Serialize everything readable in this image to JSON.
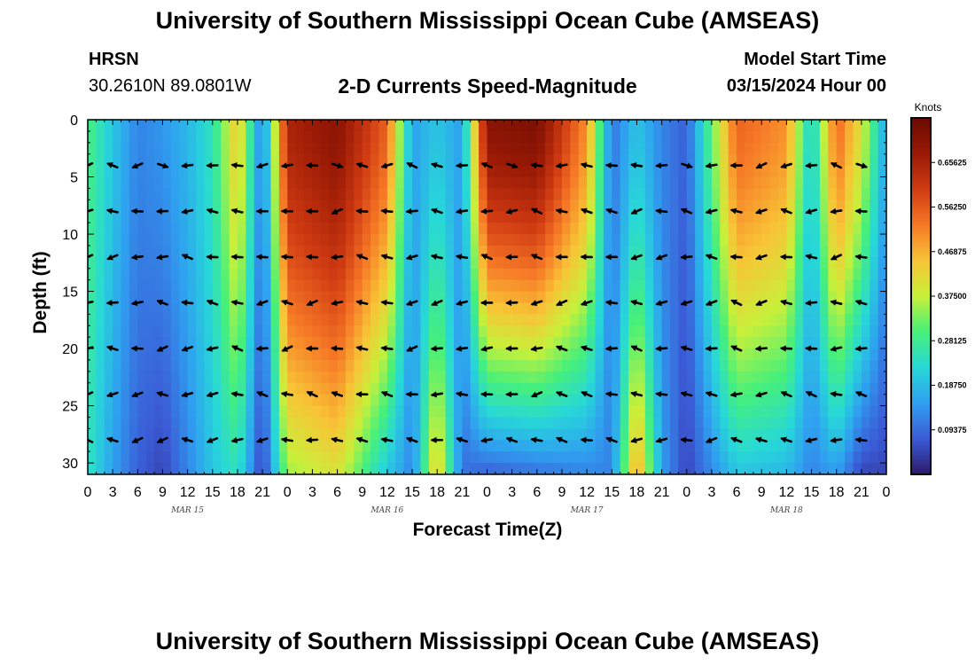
{
  "header": {
    "title": "University of Southern Mississippi Ocean Cube (AMSEAS)",
    "station": "HRSN",
    "coords": "30.2610N  89.0801W",
    "subtitle": "2-D Currents Speed-Magnitude",
    "model_start_label": "Model Start Time",
    "model_start_value": "03/15/2024 Hour 00"
  },
  "footer": {
    "title": "University of Southern Mississippi Ocean Cube (AMSEAS)"
  },
  "chart_data": {
    "type": "heatmap",
    "title": "2-D Currents Speed-Magnitude",
    "xlabel": "Forecast Time(Z)",
    "ylabel": "Depth (ft)",
    "x_range_hours": [
      0,
      96
    ],
    "y_range_ft": [
      0,
      31
    ],
    "y_inverted": true,
    "x_tick_labels": [
      "0",
      "3",
      "6",
      "9",
      "12",
      "15",
      "18",
      "21",
      "0",
      "3",
      "6",
      "9",
      "12",
      "15",
      "18",
      "21",
      "0",
      "3",
      "6",
      "9",
      "12",
      "15",
      "18",
      "21",
      "0",
      "3",
      "6",
      "9",
      "12",
      "15",
      "18",
      "21",
      "0"
    ],
    "y_ticks": [
      0,
      5,
      10,
      15,
      20,
      25,
      30
    ],
    "date_labels": [
      {
        "label": "MAR 15",
        "hour": 12
      },
      {
        "label": "MAR 16",
        "hour": 36
      },
      {
        "label": "MAR 17",
        "hour": 60
      },
      {
        "label": "MAR 18",
        "hour": 84
      }
    ],
    "colorbar": {
      "units": "Knots",
      "range": [
        0.0,
        0.75
      ],
      "ticks": [
        "0.65625",
        "0.56250",
        "0.46875",
        "0.37500",
        "0.28125",
        "0.18750",
        "0.09375"
      ],
      "colors": [
        "#2b1a6b",
        "#3b5bd6",
        "#2fa0f0",
        "#27d8d8",
        "#46f07a",
        "#c8f03a",
        "#f8c436",
        "#f67826",
        "#d03b12",
        "#9a1a05",
        "#6a0a02"
      ]
    },
    "vector_depths_ft": [
      4,
      8,
      12,
      16,
      20,
      24,
      28
    ],
    "vector_columns_hours": [
      0,
      3,
      6,
      9,
      12,
      15,
      18,
      21,
      24,
      27,
      30,
      33,
      36,
      39,
      42,
      45,
      48,
      51,
      54,
      57,
      60,
      63,
      66,
      69,
      72,
      75,
      78,
      81,
      84,
      87,
      90,
      93
    ],
    "speed_profile_knots": [
      {
        "hour": 0,
        "surface": 0.3,
        "bottom": 0.25
      },
      {
        "hour": 3,
        "surface": 0.2,
        "bottom": 0.15
      },
      {
        "hour": 6,
        "surface": 0.12,
        "bottom": 0.08
      },
      {
        "hour": 9,
        "surface": 0.14,
        "bottom": 0.05
      },
      {
        "hour": 12,
        "surface": 0.18,
        "bottom": 0.12
      },
      {
        "hour": 15,
        "surface": 0.25,
        "bottom": 0.2
      },
      {
        "hour": 18,
        "surface": 0.45,
        "bottom": 0.25
      },
      {
        "hour": 21,
        "surface": 0.1,
        "bottom": 0.04
      },
      {
        "hour": 24,
        "surface": 0.65,
        "bottom": 0.35
      },
      {
        "hour": 30,
        "surface": 0.7,
        "bottom": 0.4
      },
      {
        "hour": 36,
        "surface": 0.55,
        "bottom": 0.2
      },
      {
        "hour": 39,
        "surface": 0.15,
        "bottom": 0.12
      },
      {
        "hour": 42,
        "surface": 0.2,
        "bottom": 0.45
      },
      {
        "hour": 45,
        "surface": 0.15,
        "bottom": 0.1
      },
      {
        "hour": 48,
        "surface": 0.7,
        "bottom": 0.08
      },
      {
        "hour": 54,
        "surface": 0.72,
        "bottom": 0.1
      },
      {
        "hour": 60,
        "surface": 0.5,
        "bottom": 0.12
      },
      {
        "hour": 63,
        "surface": 0.1,
        "bottom": 0.12
      },
      {
        "hour": 66,
        "surface": 0.2,
        "bottom": 0.5
      },
      {
        "hour": 69,
        "surface": 0.12,
        "bottom": 0.15
      },
      {
        "hour": 72,
        "surface": 0.08,
        "bottom": 0.05
      },
      {
        "hour": 78,
        "surface": 0.55,
        "bottom": 0.2
      },
      {
        "hour": 84,
        "surface": 0.5,
        "bottom": 0.18
      },
      {
        "hour": 87,
        "surface": 0.2,
        "bottom": 0.12
      },
      {
        "hour": 90,
        "surface": 0.55,
        "bottom": 0.15
      },
      {
        "hour": 93,
        "surface": 0.4,
        "bottom": 0.05
      },
      {
        "hour": 96,
        "surface": 0.15,
        "bottom": 0.05
      }
    ]
  }
}
